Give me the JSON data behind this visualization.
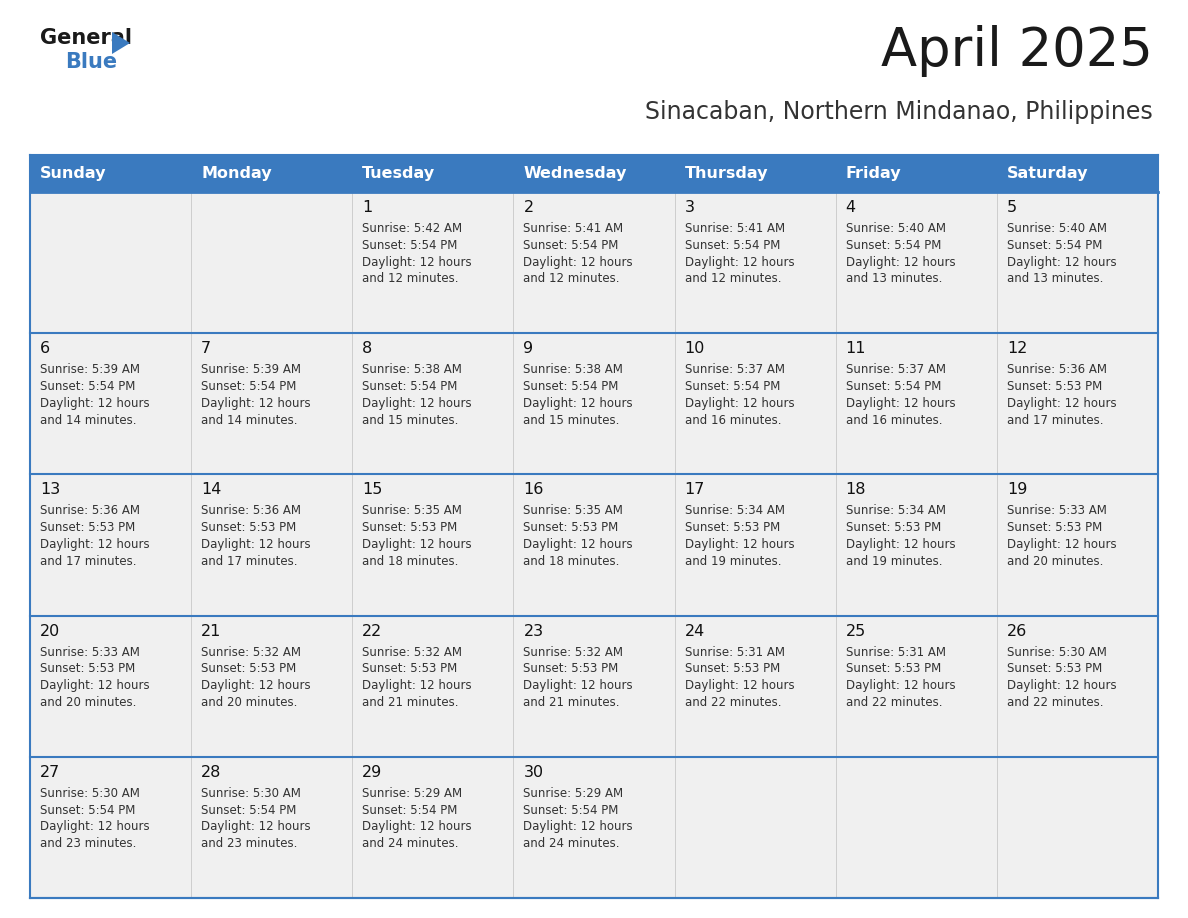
{
  "title": "April 2025",
  "subtitle": "Sinacaban, Northern Mindanao, Philippines",
  "days_of_week": [
    "Sunday",
    "Monday",
    "Tuesday",
    "Wednesday",
    "Thursday",
    "Friday",
    "Saturday"
  ],
  "header_bg": "#3a7abf",
  "header_text": "#ffffff",
  "row_bg": "#f0f0f0",
  "row_separator_color": "#3a7abf",
  "cell_border_color": "#cccccc",
  "day_num_color": "#111111",
  "text_color": "#333333",
  "title_color": "#1a1a1a",
  "subtitle_color": "#333333",
  "calendar": [
    [
      {
        "day": null,
        "sunrise": null,
        "sunset": null,
        "daylight": null
      },
      {
        "day": null,
        "sunrise": null,
        "sunset": null,
        "daylight": null
      },
      {
        "day": 1,
        "sunrise": "5:42 AM",
        "sunset": "5:54 PM",
        "daylight": "and 12 minutes."
      },
      {
        "day": 2,
        "sunrise": "5:41 AM",
        "sunset": "5:54 PM",
        "daylight": "and 12 minutes."
      },
      {
        "day": 3,
        "sunrise": "5:41 AM",
        "sunset": "5:54 PM",
        "daylight": "and 12 minutes."
      },
      {
        "day": 4,
        "sunrise": "5:40 AM",
        "sunset": "5:54 PM",
        "daylight": "and 13 minutes."
      },
      {
        "day": 5,
        "sunrise": "5:40 AM",
        "sunset": "5:54 PM",
        "daylight": "and 13 minutes."
      }
    ],
    [
      {
        "day": 6,
        "sunrise": "5:39 AM",
        "sunset": "5:54 PM",
        "daylight": "and 14 minutes."
      },
      {
        "day": 7,
        "sunrise": "5:39 AM",
        "sunset": "5:54 PM",
        "daylight": "and 14 minutes."
      },
      {
        "day": 8,
        "sunrise": "5:38 AM",
        "sunset": "5:54 PM",
        "daylight": "and 15 minutes."
      },
      {
        "day": 9,
        "sunrise": "5:38 AM",
        "sunset": "5:54 PM",
        "daylight": "and 15 minutes."
      },
      {
        "day": 10,
        "sunrise": "5:37 AM",
        "sunset": "5:54 PM",
        "daylight": "and 16 minutes."
      },
      {
        "day": 11,
        "sunrise": "5:37 AM",
        "sunset": "5:54 PM",
        "daylight": "and 16 minutes."
      },
      {
        "day": 12,
        "sunrise": "5:36 AM",
        "sunset": "5:53 PM",
        "daylight": "and 17 minutes."
      }
    ],
    [
      {
        "day": 13,
        "sunrise": "5:36 AM",
        "sunset": "5:53 PM",
        "daylight": "and 17 minutes."
      },
      {
        "day": 14,
        "sunrise": "5:36 AM",
        "sunset": "5:53 PM",
        "daylight": "and 17 minutes."
      },
      {
        "day": 15,
        "sunrise": "5:35 AM",
        "sunset": "5:53 PM",
        "daylight": "and 18 minutes."
      },
      {
        "day": 16,
        "sunrise": "5:35 AM",
        "sunset": "5:53 PM",
        "daylight": "and 18 minutes."
      },
      {
        "day": 17,
        "sunrise": "5:34 AM",
        "sunset": "5:53 PM",
        "daylight": "and 19 minutes."
      },
      {
        "day": 18,
        "sunrise": "5:34 AM",
        "sunset": "5:53 PM",
        "daylight": "and 19 minutes."
      },
      {
        "day": 19,
        "sunrise": "5:33 AM",
        "sunset": "5:53 PM",
        "daylight": "and 20 minutes."
      }
    ],
    [
      {
        "day": 20,
        "sunrise": "5:33 AM",
        "sunset": "5:53 PM",
        "daylight": "and 20 minutes."
      },
      {
        "day": 21,
        "sunrise": "5:32 AM",
        "sunset": "5:53 PM",
        "daylight": "and 20 minutes."
      },
      {
        "day": 22,
        "sunrise": "5:32 AM",
        "sunset": "5:53 PM",
        "daylight": "and 21 minutes."
      },
      {
        "day": 23,
        "sunrise": "5:32 AM",
        "sunset": "5:53 PM",
        "daylight": "and 21 minutes."
      },
      {
        "day": 24,
        "sunrise": "5:31 AM",
        "sunset": "5:53 PM",
        "daylight": "and 22 minutes."
      },
      {
        "day": 25,
        "sunrise": "5:31 AM",
        "sunset": "5:53 PM",
        "daylight": "and 22 minutes."
      },
      {
        "day": 26,
        "sunrise": "5:30 AM",
        "sunset": "5:53 PM",
        "daylight": "and 22 minutes."
      }
    ],
    [
      {
        "day": 27,
        "sunrise": "5:30 AM",
        "sunset": "5:54 PM",
        "daylight": "and 23 minutes."
      },
      {
        "day": 28,
        "sunrise": "5:30 AM",
        "sunset": "5:54 PM",
        "daylight": "and 23 minutes."
      },
      {
        "day": 29,
        "sunrise": "5:29 AM",
        "sunset": "5:54 PM",
        "daylight": "and 24 minutes."
      },
      {
        "day": 30,
        "sunrise": "5:29 AM",
        "sunset": "5:54 PM",
        "daylight": "and 24 minutes."
      },
      {
        "day": null,
        "sunrise": null,
        "sunset": null,
        "daylight": null
      },
      {
        "day": null,
        "sunrise": null,
        "sunset": null,
        "daylight": null
      },
      {
        "day": null,
        "sunrise": null,
        "sunset": null,
        "daylight": null
      }
    ]
  ],
  "logo_text1": "General",
  "logo_text2": "Blue",
  "logo_color1": "#1a1a1a",
  "logo_color2": "#3a7abf",
  "logo_arrow_color": "#3a7abf"
}
